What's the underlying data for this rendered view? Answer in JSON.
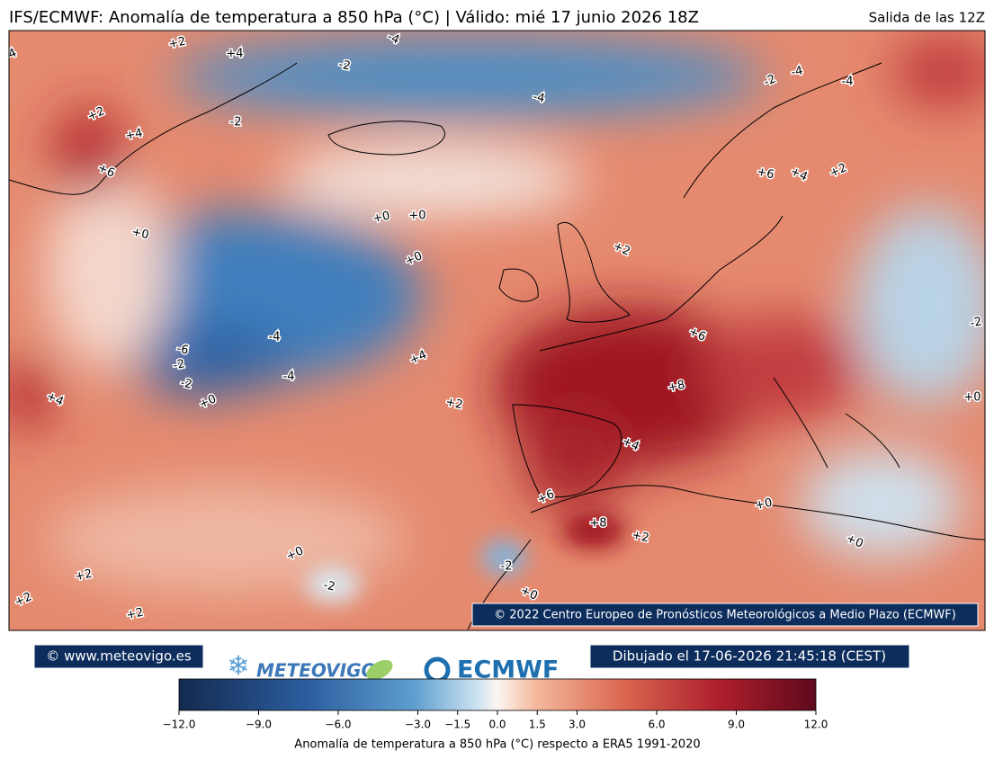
{
  "header": {
    "title": "IFS/ECMWF: Anomalía de temperatura a 850 hPa (°C) | Válido: mié 17 junio 2026 18Z",
    "run": "Salida de las 12Z"
  },
  "map": {
    "copyright": "© 2022 Centro Europeo de Pronósticos Meteorológicos a Medio Plazo (ECMWF)",
    "contour_labels": [
      "4",
      "+2",
      "+4",
      "-2",
      "-4",
      "+2",
      "+4",
      "-2",
      "-4",
      "+6",
      "-2",
      "-4",
      "-4",
      "+6",
      "+4",
      "+2",
      "+0",
      "+0",
      "+0",
      "+2",
      "+0",
      "-2",
      "-4",
      "-6",
      "+6",
      "+4",
      "-2",
      "-4",
      "-2",
      "+4",
      "+0",
      "+8",
      "+0",
      "+2",
      "+4",
      "+6",
      "+0",
      "+8",
      "+2",
      "+0",
      "+0",
      "+2",
      "-2",
      "-2",
      "+0",
      "+2",
      "+2"
    ]
  },
  "footer": {
    "site": "© www.meteovigo.es",
    "logo_meteovigo": "METEOVIGO",
    "logo_ecmwf": "ECMWF",
    "drawn": "Dibujado el 17-06-2026 21:45:18 (CEST)"
  },
  "colorbar": {
    "label": "Anomalía de temperatura a 850 hPa (°C) respecto a ERA5 1991-2020",
    "lim": [
      -12,
      12
    ],
    "ticks": [
      {
        "value": -12,
        "label": "−12.0"
      },
      {
        "value": -9,
        "label": "−9.0"
      },
      {
        "value": -6,
        "label": "−6.0"
      },
      {
        "value": -3,
        "label": "−3.0"
      },
      {
        "value": -1.5,
        "label": "−1.5"
      },
      {
        "value": 0,
        "label": "0.0"
      },
      {
        "value": 1.5,
        "label": "1.5"
      },
      {
        "value": 3,
        "label": "3.0"
      },
      {
        "value": 6,
        "label": "6.0"
      },
      {
        "value": 9,
        "label": "9.0"
      },
      {
        "value": 12,
        "label": "12.0"
      }
    ]
  }
}
